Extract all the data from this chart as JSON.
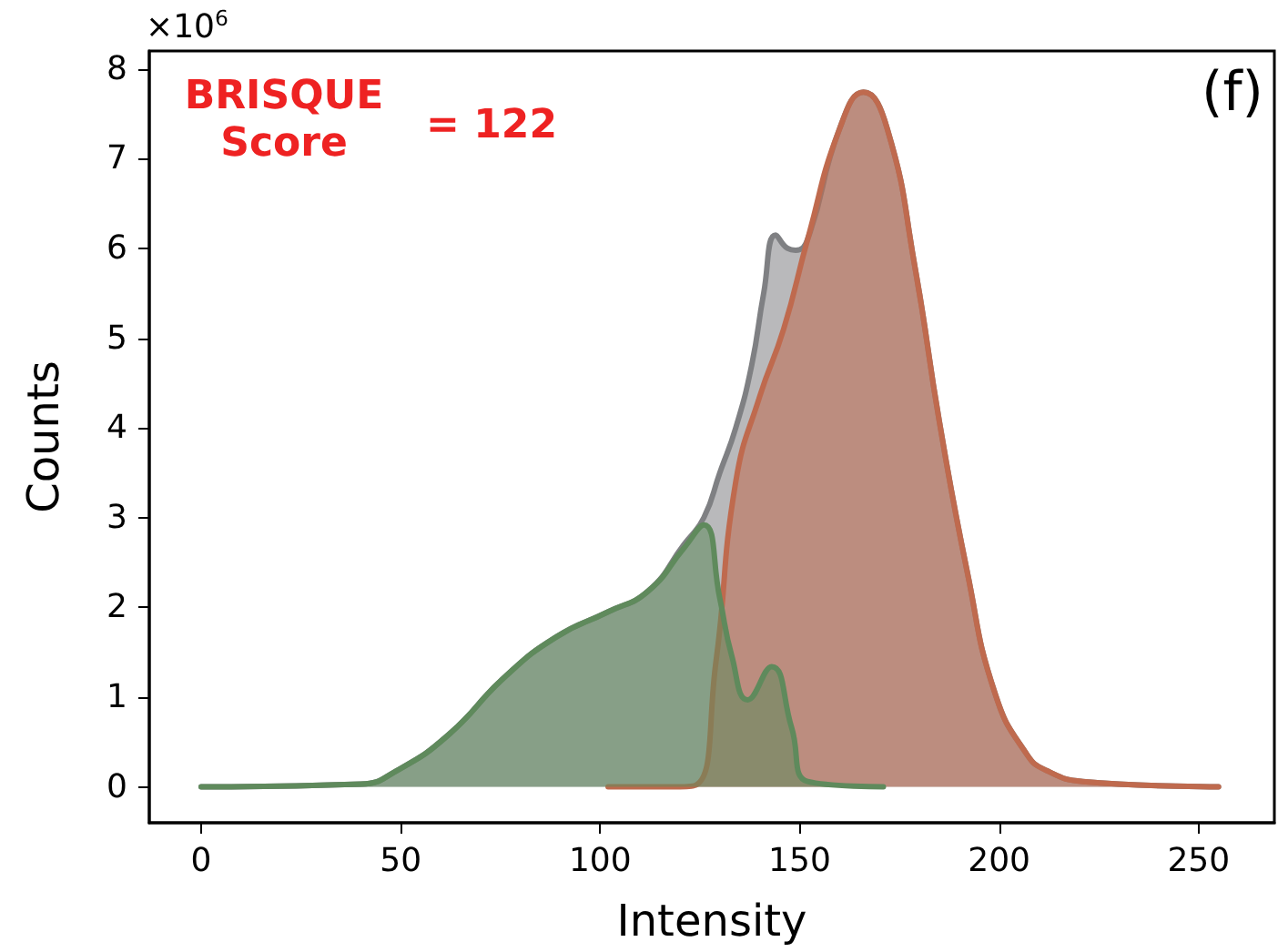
{
  "chart_data": {
    "type": "area",
    "xlabel": "Intensity",
    "ylabel": "Counts",
    "annotations": [
      "×10$^{6}$",
      "BRISQUE\nScore",
      "= 122",
      "(f)"
    ],
    "xlim": [
      -13,
      269
    ],
    "ylim": [
      -0.4,
      8.2
    ],
    "xticks": [
      0,
      50,
      100,
      150,
      200,
      250
    ],
    "yticks": [
      0,
      1,
      2,
      3,
      4,
      5,
      6,
      7,
      8
    ],
    "grid": false,
    "marker": "none",
    "line_style": "solid",
    "series": [
      {
        "color": "#7f8083",
        "x": [
          0,
          40,
          49,
          62,
          76,
          89,
          102,
          112,
          121,
          126,
          130,
          134,
          138,
          141,
          144,
          147,
          149,
          152,
          160,
          166,
          172,
          179,
          185,
          192,
          199,
          207,
          212,
          221,
          255
        ],
        "values": [
          0,
          0.03,
          0.18,
          0.58,
          1.22,
          1.67,
          1.95,
          2.18,
          2.7,
          3.0,
          3.5,
          4.0,
          4.7,
          5.5,
          6.15,
          6.0,
          5.98,
          6.1,
          7.33,
          7.74,
          7.33,
          5.77,
          4.08,
          2.4,
          1.04,
          0.36,
          0.18,
          0.06,
          0
        ]
      },
      {
        "color": "#bf6a4e",
        "x": [
          102,
          118,
          124,
          129,
          134,
          140,
          146,
          152,
          160,
          166,
          172,
          179,
          185,
          192,
          199,
          207,
          212,
          221,
          255
        ],
        "values": [
          0,
          0,
          0.02,
          1.38,
          3.4,
          4.35,
          5.1,
          6.1,
          7.33,
          7.74,
          7.33,
          5.77,
          4.08,
          2.4,
          1.04,
          0.36,
          0.18,
          0.06,
          0
        ]
      },
      {
        "color": "#5f8a5c",
        "x": [
          0,
          40,
          49,
          62,
          76,
          89,
          102,
          112,
          121,
          126,
          130,
          133,
          137,
          143,
          148,
          152,
          171
        ],
        "values": [
          0,
          0.03,
          0.18,
          0.58,
          1.22,
          1.67,
          1.95,
          2.18,
          2.66,
          2.92,
          2.1,
          1.46,
          0.97,
          1.34,
          0.66,
          0.06,
          0
        ]
      }
    ]
  }
}
